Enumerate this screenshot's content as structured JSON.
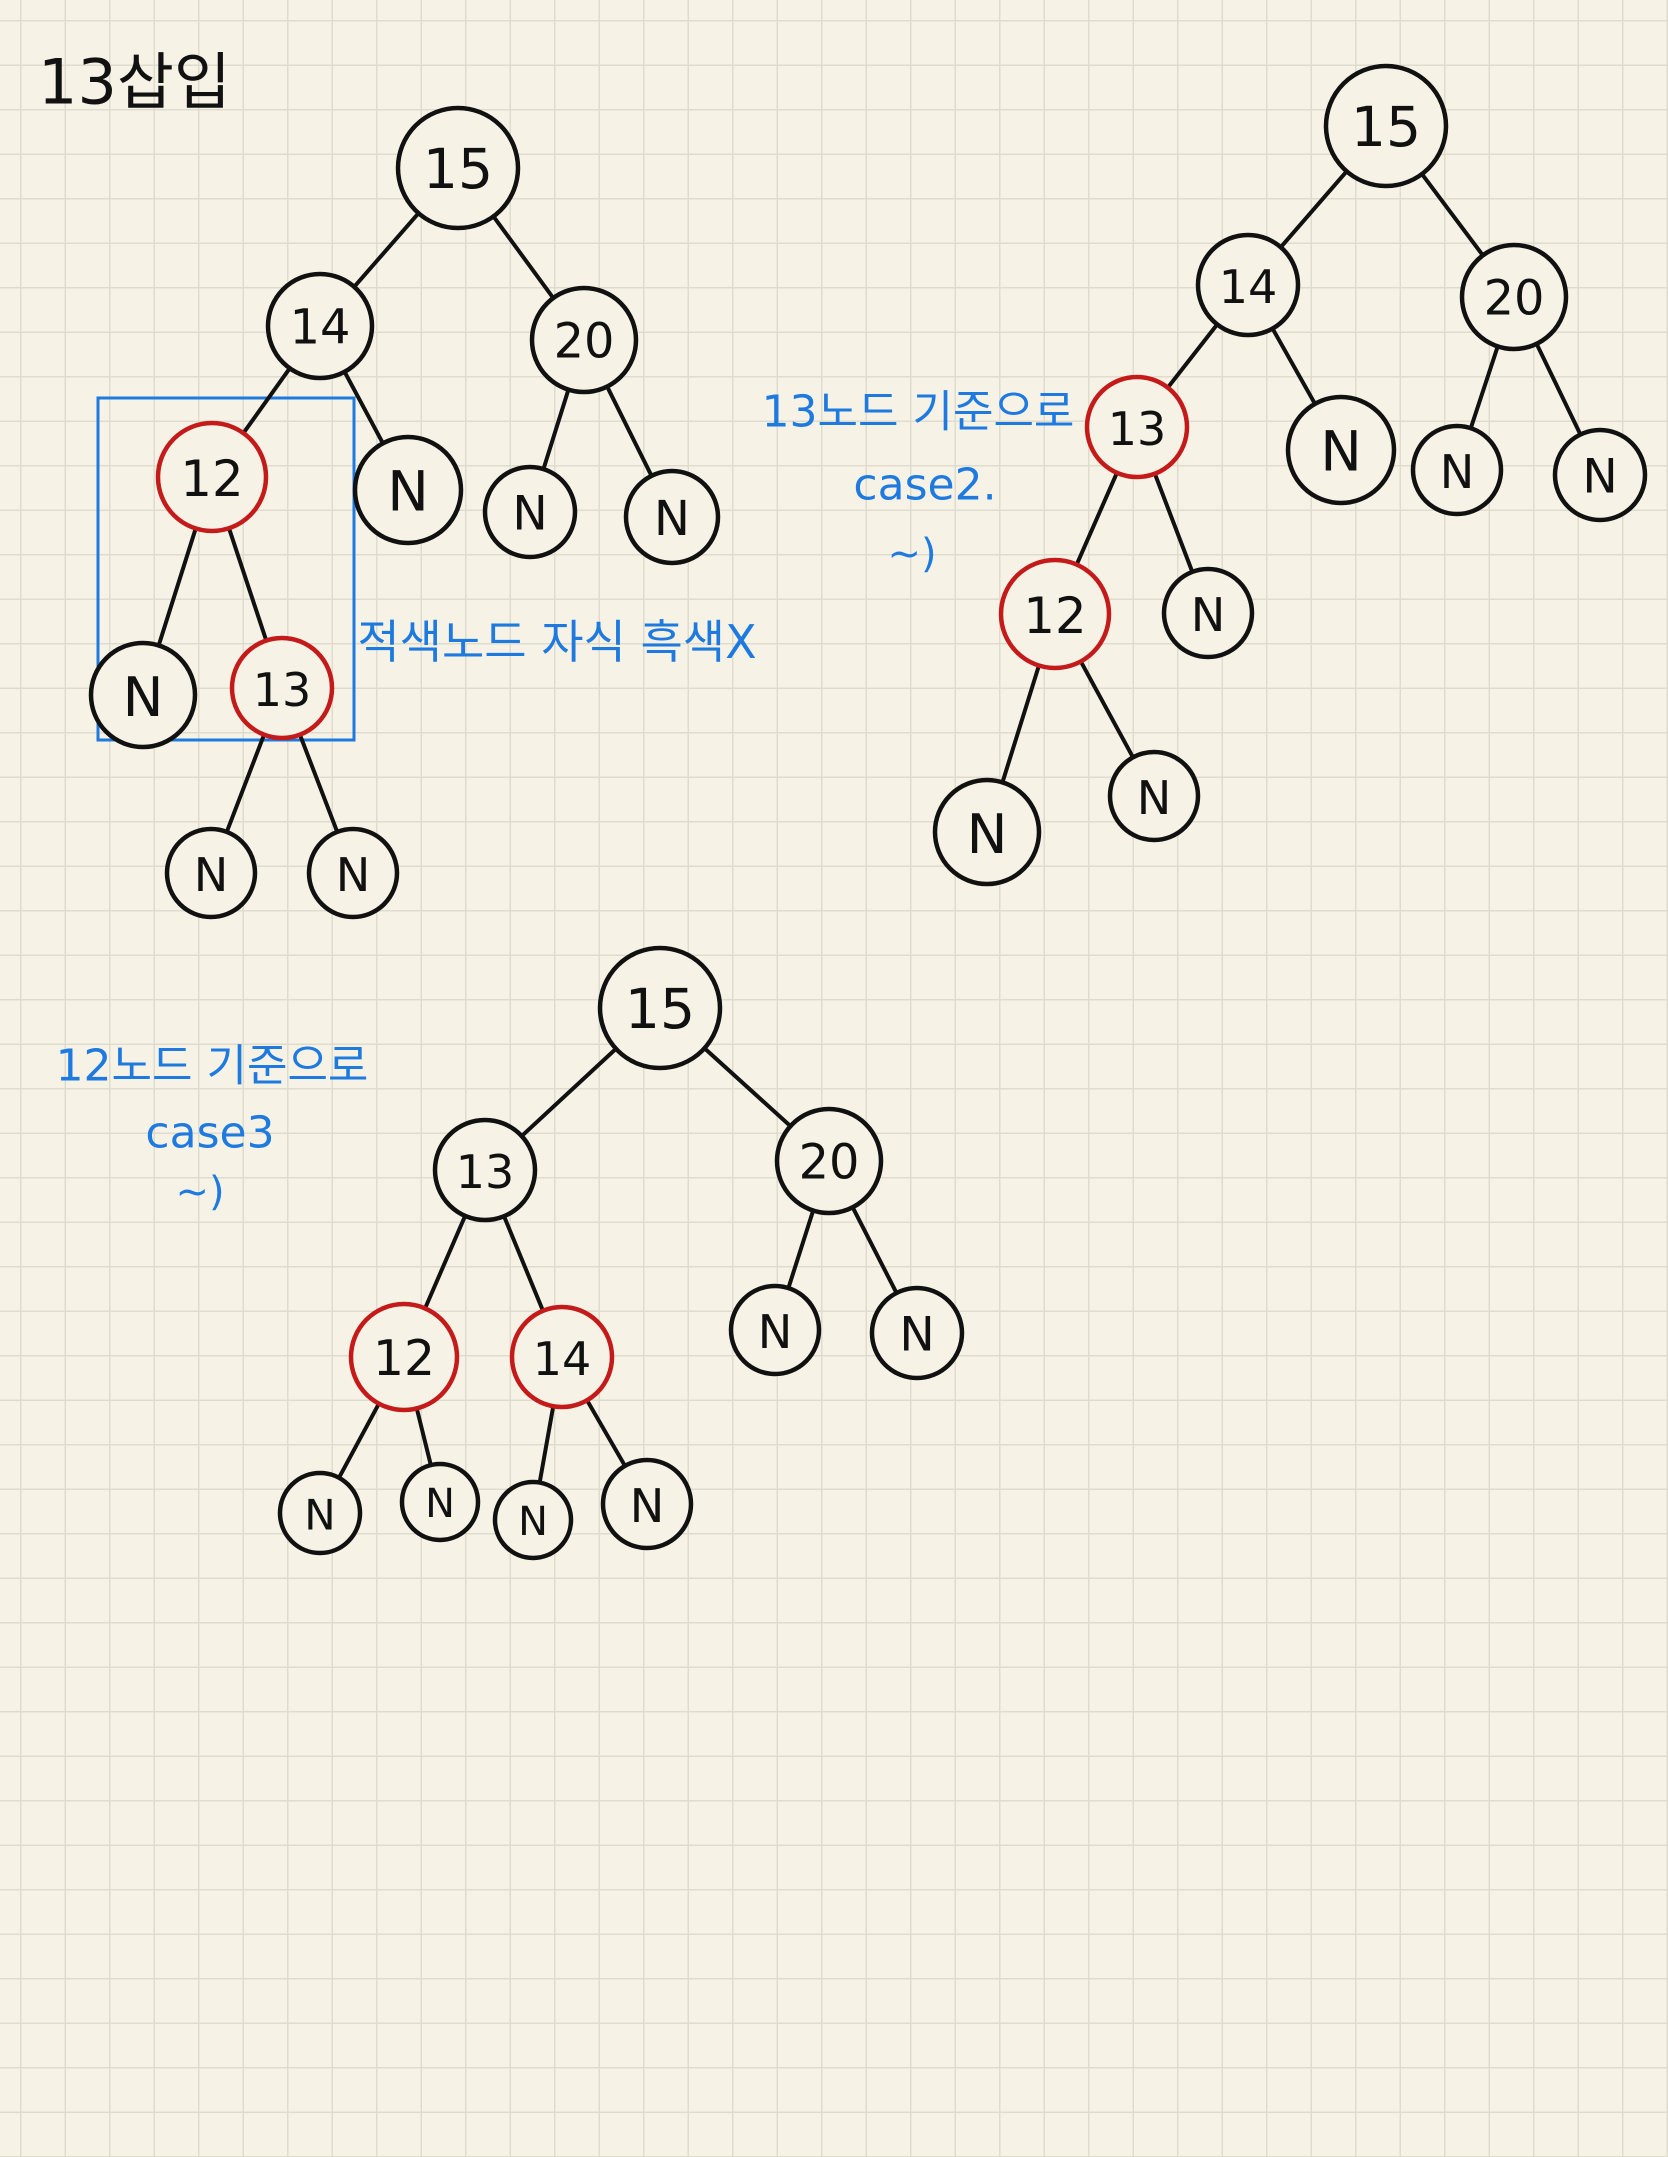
{
  "colors": {
    "background": "#f6f3e6",
    "grid": "#dfdcce",
    "ink": "#111111",
    "red_node": "#c41a1a",
    "blue_ink": "#1f7ae0"
  },
  "title": "13삽입",
  "diagrams": [
    {
      "id": "step1",
      "nodes": [
        {
          "id": "n15",
          "label": "15",
          "color": "black"
        },
        {
          "id": "n14",
          "label": "14",
          "color": "black"
        },
        {
          "id": "n20",
          "label": "20",
          "color": "black"
        },
        {
          "id": "n12",
          "label": "12",
          "color": "red"
        },
        {
          "id": "n14N",
          "label": "N",
          "color": "black"
        },
        {
          "id": "n20L",
          "label": "N",
          "color": "black"
        },
        {
          "id": "n20R",
          "label": "N",
          "color": "black"
        },
        {
          "id": "n12L",
          "label": "N",
          "color": "black"
        },
        {
          "id": "n13",
          "label": "13",
          "color": "red"
        },
        {
          "id": "n13L",
          "label": "N",
          "color": "black"
        },
        {
          "id": "n13R",
          "label": "N",
          "color": "black"
        }
      ],
      "edges": [
        [
          "n15",
          "n14"
        ],
        [
          "n15",
          "n20"
        ],
        [
          "n14",
          "n12"
        ],
        [
          "n14",
          "n14N"
        ],
        [
          "n20",
          "n20L"
        ],
        [
          "n20",
          "n20R"
        ],
        [
          "n12",
          "n12L"
        ],
        [
          "n12",
          "n13"
        ],
        [
          "n13",
          "n13L"
        ],
        [
          "n13",
          "n13R"
        ]
      ],
      "note": "적색노드 자식 흑색X"
    },
    {
      "id": "step2",
      "nodes": [
        {
          "id": "m15",
          "label": "15",
          "color": "black"
        },
        {
          "id": "m14",
          "label": "14",
          "color": "black"
        },
        {
          "id": "m20",
          "label": "20",
          "color": "black"
        },
        {
          "id": "m13",
          "label": "13",
          "color": "red"
        },
        {
          "id": "m14N",
          "label": "N",
          "color": "black"
        },
        {
          "id": "m20L",
          "label": "N",
          "color": "black"
        },
        {
          "id": "m20R",
          "label": "N",
          "color": "black"
        },
        {
          "id": "m12",
          "label": "12",
          "color": "red"
        },
        {
          "id": "m13N",
          "label": "N",
          "color": "black"
        },
        {
          "id": "m12L",
          "label": "N",
          "color": "black"
        },
        {
          "id": "m12R",
          "label": "N",
          "color": "black"
        }
      ],
      "edges": [
        [
          "m15",
          "m14"
        ],
        [
          "m15",
          "m20"
        ],
        [
          "m14",
          "m13"
        ],
        [
          "m14",
          "m14N"
        ],
        [
          "m20",
          "m20L"
        ],
        [
          "m20",
          "m20R"
        ],
        [
          "m13",
          "m12"
        ],
        [
          "m13",
          "m13N"
        ],
        [
          "m12",
          "m12L"
        ],
        [
          "m12",
          "m12R"
        ]
      ],
      "note_lines": [
        "13노드 기준으로",
        "case2.",
        "~)"
      ]
    },
    {
      "id": "step3",
      "nodes": [
        {
          "id": "k15",
          "label": "15",
          "color": "black"
        },
        {
          "id": "k13",
          "label": "13",
          "color": "black"
        },
        {
          "id": "k20",
          "label": "20",
          "color": "black"
        },
        {
          "id": "k12",
          "label": "12",
          "color": "red"
        },
        {
          "id": "k14",
          "label": "14",
          "color": "red"
        },
        {
          "id": "k20L",
          "label": "N",
          "color": "black"
        },
        {
          "id": "k20R",
          "label": "N",
          "color": "black"
        },
        {
          "id": "k12L",
          "label": "N",
          "color": "black"
        },
        {
          "id": "k12R",
          "label": "N",
          "color": "black"
        },
        {
          "id": "k14L",
          "label": "N",
          "color": "black"
        },
        {
          "id": "k14R",
          "label": "N",
          "color": "black"
        }
      ],
      "edges": [
        [
          "k15",
          "k13"
        ],
        [
          "k15",
          "k20"
        ],
        [
          "k13",
          "k12"
        ],
        [
          "k13",
          "k14"
        ],
        [
          "k20",
          "k20L"
        ],
        [
          "k20",
          "k20R"
        ],
        [
          "k12",
          "k12L"
        ],
        [
          "k12",
          "k12R"
        ],
        [
          "k14",
          "k14L"
        ],
        [
          "k14",
          "k14R"
        ]
      ],
      "note_lines": [
        "12노드 기준으로",
        "case3",
        "~)"
      ]
    }
  ]
}
